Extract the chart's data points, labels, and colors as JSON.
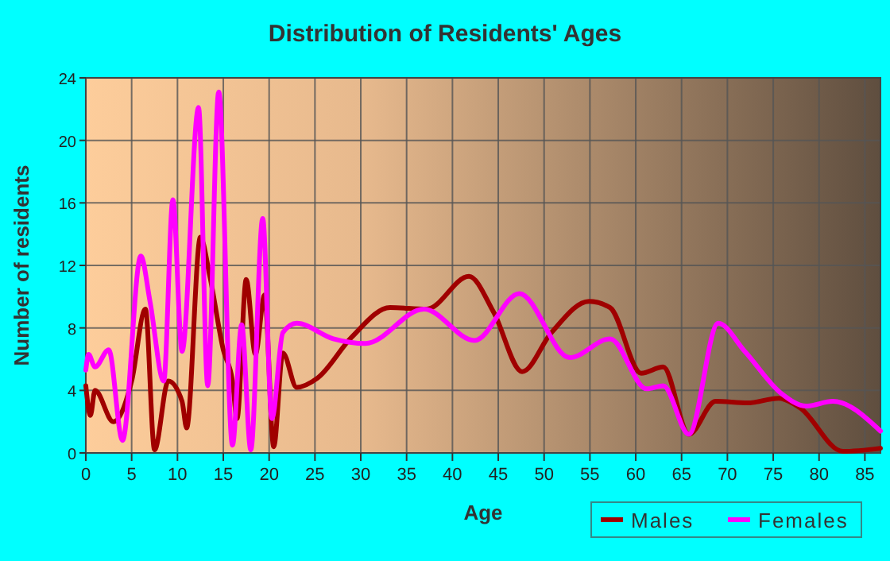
{
  "chart_data": {
    "type": "line",
    "title": "Distribution of Residents' Ages",
    "xlabel": "Age",
    "ylabel": "Number of residents",
    "xlim": [
      0,
      86.7
    ],
    "xticks": [
      0,
      5,
      10,
      15,
      20,
      25,
      30,
      35,
      40,
      45,
      50,
      55,
      60,
      65,
      70,
      75,
      80,
      85
    ],
    "ylim": [
      0,
      24
    ],
    "yticks": [
      0,
      4,
      8,
      12,
      16,
      20,
      24
    ],
    "grid": true,
    "legend": "bottom right",
    "marker": "none",
    "line_style": "solid",
    "series": [
      {
        "name": "Males",
        "color": "#a00000",
        "x": [
          0,
          0.5,
          1,
          3,
          5,
          6.5,
          7.5,
          9,
          10.5,
          11,
          12.5,
          13.5,
          15,
          16,
          16.5,
          17.5,
          18.5,
          19.5,
          20.5,
          21.5,
          23,
          25.3,
          29,
          33.2,
          37.2,
          41.8,
          44.5,
          47.6,
          50.8,
          54.9,
          57.2,
          60.6,
          63,
          65.8,
          68.7,
          72.2,
          75.6,
          77.9,
          82.6,
          86.7
        ],
        "values": [
          4.3,
          2.4,
          4.0,
          2.0,
          4.6,
          9.2,
          0.2,
          4.6,
          3.3,
          1.6,
          13.8,
          11.4,
          6.6,
          4.6,
          2.2,
          11.1,
          6.3,
          10.1,
          0.4,
          6.4,
          4.2,
          4.8,
          7.4,
          9.3,
          9.2,
          11.3,
          9.0,
          5.2,
          7.7,
          9.7,
          9.3,
          5.1,
          5.5,
          1.2,
          3.3,
          3.2,
          3.5,
          2.9,
          0.1,
          0.3
        ]
      },
      {
        "name": "Females",
        "color": "#ff00ff",
        "x": [
          0,
          0.3,
          1,
          2.5,
          4,
          6,
          7,
          8.5,
          9.5,
          10.5,
          12.3,
          13.3,
          14.5,
          16,
          17,
          18,
          19.3,
          20.3,
          21.5,
          23,
          27,
          30.5,
          36.9,
          42.4,
          47.3,
          52.8,
          57.2,
          61.2,
          63,
          65.8,
          69,
          71.9,
          75.9,
          78.6,
          81.5,
          86.7
        ],
        "values": [
          5.3,
          6.3,
          5.5,
          6.6,
          0.8,
          12.6,
          9.7,
          4.6,
          16.2,
          6.5,
          22.1,
          4.3,
          23.1,
          0.5,
          8.2,
          0.2,
          15.0,
          2.2,
          7.7,
          8.3,
          7.3,
          7.0,
          9.2,
          7.2,
          10.2,
          6.1,
          7.3,
          4.1,
          4.3,
          1.2,
          8.3,
          6.5,
          3.8,
          3.0,
          3.3,
          1.4
        ]
      }
    ]
  }
}
